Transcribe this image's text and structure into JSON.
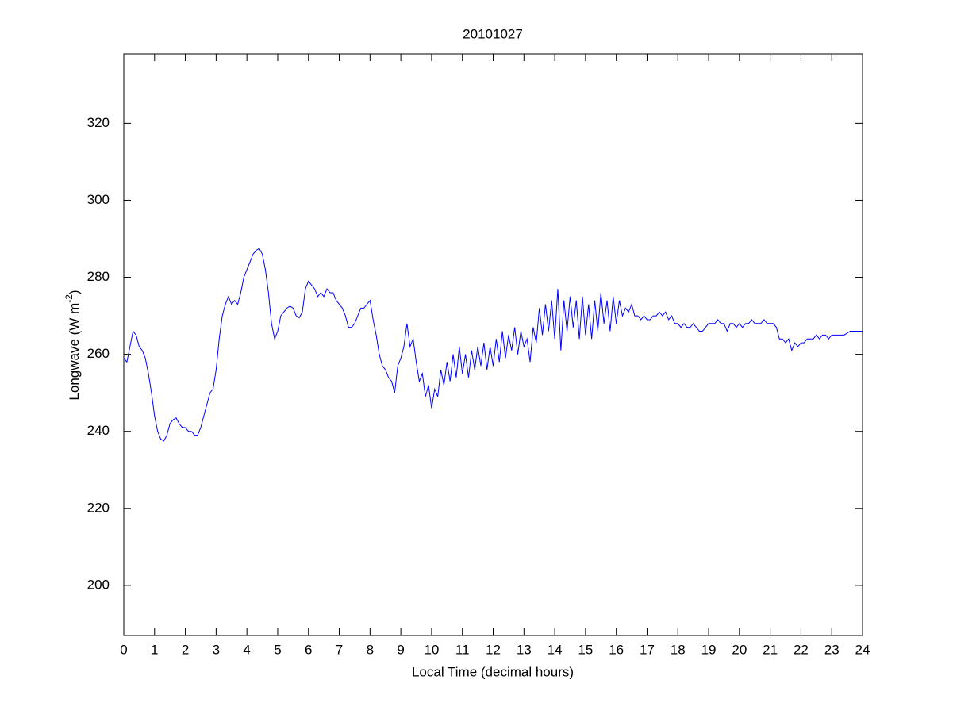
{
  "chart_data": {
    "type": "line",
    "title": "20101027",
    "xlabel": "Local Time (decimal hours)",
    "ylabel": {
      "text": "Longwave (W m",
      "superscript": "-2",
      "suffix": ")"
    },
    "xlim": [
      0,
      24
    ],
    "ylim": [
      187,
      338
    ],
    "xticks": [
      0,
      1,
      2,
      3,
      4,
      5,
      6,
      7,
      8,
      9,
      10,
      11,
      12,
      13,
      14,
      15,
      16,
      17,
      18,
      19,
      20,
      21,
      22,
      23,
      24
    ],
    "yticks": [
      200,
      220,
      240,
      260,
      280,
      300,
      320
    ],
    "x": [
      0,
      0.1,
      0.2,
      0.3,
      0.4,
      0.5,
      0.6,
      0.7,
      0.8,
      0.9,
      1,
      1.1,
      1.2,
      1.3,
      1.4,
      1.5,
      1.6,
      1.7,
      1.8,
      1.9,
      2,
      2.1,
      2.2,
      2.3,
      2.4,
      2.5,
      2.6,
      2.7,
      2.8,
      2.9,
      3,
      3.1,
      3.2,
      3.3,
      3.4,
      3.5,
      3.6,
      3.7,
      3.8,
      3.9,
      4,
      4.1,
      4.2,
      4.3,
      4.4,
      4.5,
      4.6,
      4.7,
      4.8,
      4.9,
      5,
      5.1,
      5.2,
      5.3,
      5.4,
      5.5,
      5.6,
      5.7,
      5.8,
      5.9,
      6,
      6.1,
      6.2,
      6.3,
      6.4,
      6.5,
      6.6,
      6.7,
      6.8,
      6.9,
      7,
      7.1,
      7.2,
      7.3,
      7.4,
      7.5,
      7.6,
      7.7,
      7.8,
      7.9,
      8,
      8.1,
      8.2,
      8.3,
      8.4,
      8.5,
      8.6,
      8.7,
      8.8,
      8.9,
      9,
      9.1,
      9.2,
      9.3,
      9.4,
      9.5,
      9.6,
      9.7,
      9.8,
      9.9,
      10,
      10.1,
      10.2,
      10.3,
      10.4,
      10.5,
      10.6,
      10.7,
      10.8,
      10.9,
      11,
      11.1,
      11.2,
      11.3,
      11.4,
      11.5,
      11.6,
      11.7,
      11.8,
      11.9,
      12,
      12.1,
      12.2,
      12.3,
      12.4,
      12.5,
      12.6,
      12.7,
      12.8,
      12.9,
      13,
      13.1,
      13.2,
      13.3,
      13.4,
      13.5,
      13.6,
      13.7,
      13.8,
      13.9,
      14,
      14.1,
      14.2,
      14.3,
      14.4,
      14.5,
      14.6,
      14.7,
      14.8,
      14.9,
      15,
      15.1,
      15.2,
      15.3,
      15.4,
      15.5,
      15.6,
      15.7,
      15.8,
      15.9,
      16,
      16.1,
      16.2,
      16.3,
      16.4,
      16.5,
      16.6,
      16.7,
      16.8,
      16.9,
      17,
      17.1,
      17.2,
      17.3,
      17.4,
      17.5,
      17.6,
      17.7,
      17.8,
      17.9,
      18,
      18.1,
      18.2,
      18.3,
      18.4,
      18.5,
      18.6,
      18.7,
      18.8,
      18.9,
      19,
      19.1,
      19.2,
      19.3,
      19.4,
      19.5,
      19.6,
      19.7,
      19.8,
      19.9,
      20,
      20.1,
      20.2,
      20.3,
      20.4,
      20.5,
      20.6,
      20.7,
      20.8,
      20.9,
      21,
      21.1,
      21.2,
      21.3,
      21.4,
      21.5,
      21.6,
      21.7,
      21.8,
      21.9,
      22,
      22.1,
      22.2,
      22.3,
      22.4,
      22.5,
      22.6,
      22.7,
      22.8,
      22.9,
      23,
      23.1,
      23.2,
      23.3,
      23.4,
      23.5,
      23.6,
      23.7,
      23.8,
      23.9,
      24
    ],
    "series": [
      {
        "color": "#0000ff",
        "values": [
          259,
          258,
          262,
          266,
          265,
          262,
          261,
          259,
          255,
          250,
          244,
          240,
          238,
          237.5,
          239,
          242,
          243,
          243.5,
          242,
          241,
          241,
          240,
          240,
          239,
          239,
          241,
          244,
          247,
          250,
          251,
          256,
          264,
          270,
          273,
          275,
          273,
          274,
          273,
          276,
          280,
          282,
          284,
          286,
          287,
          287.5,
          286,
          282,
          276,
          268,
          264,
          266,
          270,
          271,
          272,
          272.5,
          272,
          270,
          269.5,
          271,
          277,
          279,
          278,
          277,
          275,
          276,
          275,
          277,
          276,
          276,
          274,
          273,
          272,
          270,
          267,
          267,
          268,
          270,
          272,
          272,
          273,
          274,
          269,
          265,
          260,
          257,
          256,
          254,
          253,
          250,
          257,
          259,
          262,
          268,
          262,
          264,
          258,
          253,
          255,
          249,
          252,
          246,
          251,
          249,
          256,
          252,
          258,
          253,
          260,
          254,
          262,
          255,
          260,
          254,
          261,
          256,
          262,
          257,
          263,
          256,
          262,
          257,
          264,
          258,
          266,
          259,
          265,
          261,
          267,
          260,
          266,
          262,
          264,
          258,
          267,
          263,
          272,
          265,
          273,
          266,
          274,
          264,
          277,
          261,
          274,
          266,
          275,
          267,
          274,
          264,
          275,
          265,
          273,
          264,
          274,
          266,
          276,
          268,
          274,
          266,
          275,
          268,
          274,
          270,
          272,
          271,
          273,
          270,
          270,
          269,
          270,
          269,
          269,
          270,
          270,
          271,
          270,
          271,
          269,
          270,
          268,
          268,
          267,
          268,
          267,
          267,
          268,
          267,
          266,
          266,
          267,
          268,
          268,
          268,
          269,
          268,
          268,
          266,
          268,
          268,
          267,
          268,
          267,
          268,
          268,
          269,
          268,
          268,
          268,
          269,
          268,
          268,
          268,
          267,
          264,
          264,
          263,
          264,
          261,
          263,
          262,
          263,
          263,
          264,
          264,
          264,
          265,
          264,
          265,
          265,
          264,
          265,
          265,
          265,
          265,
          265,
          265.5,
          266,
          266,
          266,
          266,
          266
        ]
      }
    ]
  }
}
